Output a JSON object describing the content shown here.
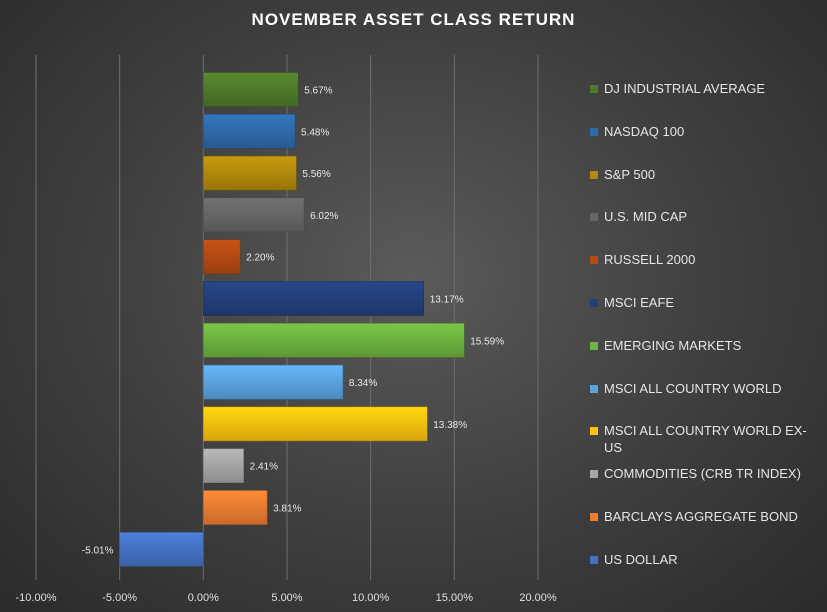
{
  "chart_data": {
    "type": "bar",
    "orientation": "horizontal",
    "title": "NOVEMBER ASSET CLASS RETURN",
    "xlim": [
      -10,
      20
    ],
    "x_ticks": [
      "-10.00%",
      "-5.00%",
      "0.00%",
      "5.00%",
      "10.00%",
      "15.00%",
      "20.00%"
    ],
    "grid": true,
    "legend_position": "right",
    "series": [
      {
        "name": "DJ INDUSTRIAL AVERAGE",
        "value": 5.67,
        "label": "5.67%",
        "color": "#4f7a2a"
      },
      {
        "name": "NASDAQ 100",
        "value": 5.48,
        "label": "5.48%",
        "color": "#2e6aab"
      },
      {
        "name": "S&P 500",
        "value": 5.56,
        "label": "5.56%",
        "color": "#b38a0c"
      },
      {
        "name": "U.S. MID CAP",
        "value": 6.02,
        "label": "6.02%",
        "color": "#666666"
      },
      {
        "name": "RUSSELL 2000",
        "value": 2.2,
        "label": "2.20%",
        "color": "#b44a14"
      },
      {
        "name": "MSCI EAFE",
        "value": 13.17,
        "label": "13.17%",
        "color": "#23407a"
      },
      {
        "name": "EMERGING MARKETS",
        "value": 15.59,
        "label": "15.59%",
        "color": "#6db33f"
      },
      {
        "name": "MSCI ALL COUNTRY WORLD",
        "value": 8.34,
        "label": "8.34%",
        "color": "#5ba3e0"
      },
      {
        "name": "MSCI ALL COUNTRY WORLD EX-US",
        "value": 13.38,
        "label": "13.38%",
        "color": "#ffc20e"
      },
      {
        "name": "COMMODITIES (CRB TR INDEX)",
        "value": 2.41,
        "label": "2.41%",
        "color": "#a6a6a6"
      },
      {
        "name": "BARCLAYS AGGREGATE BOND",
        "value": 3.81,
        "label": "3.81%",
        "color": "#ed7d31"
      },
      {
        "name": "US DOLLAR",
        "value": -5.01,
        "label": "-5.01%",
        "color": "#4472c4"
      }
    ]
  }
}
